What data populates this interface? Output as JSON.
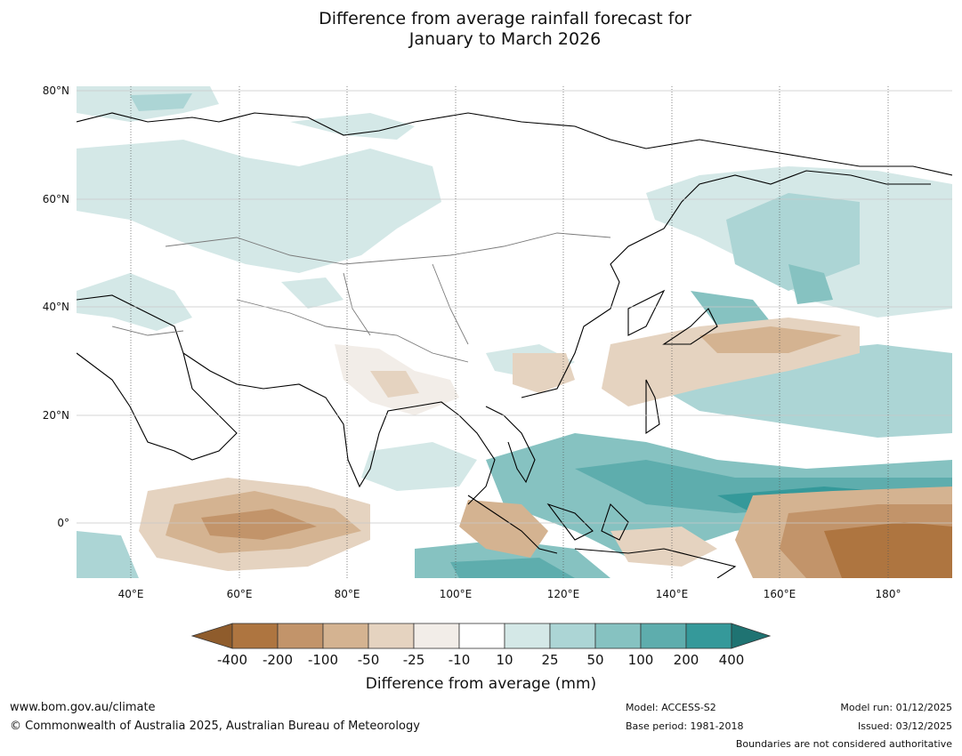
{
  "title_line1": "Difference from average rainfall forecast for",
  "title_line2": "January to March 2026",
  "lat_labels": [
    "80°N",
    "60°N",
    "40°N",
    "20°N",
    "0°"
  ],
  "lon_labels": [
    "40°E",
    "60°E",
    "80°E",
    "100°E",
    "120°E",
    "140°E",
    "160°E",
    "180°"
  ],
  "colorbar": {
    "ticks": [
      "-400",
      "-200",
      "-100",
      "-50",
      "-25",
      "-10",
      "10",
      "25",
      "50",
      "100",
      "200",
      "400"
    ],
    "colors": [
      "#8f5c2c",
      "#ae7540",
      "#c2946a",
      "#d4b391",
      "#e5d3c0",
      "#f2ede8",
      "#ffffff",
      "#d4e8e7",
      "#acd5d5",
      "#86c2c1",
      "#5eadad",
      "#35999a",
      "#1f7372"
    ],
    "label": "Difference from average (mm)"
  },
  "footer": {
    "website": "www.bom.gov.au/climate",
    "copyright": "© Commonwealth of Australia 2025, Australian Bureau of Meteorology",
    "model": "Model: ACCESS-S2",
    "base_period": "Base period: 1981-2018",
    "model_run": "Model run: 01/12/2025",
    "issued": "Issued: 03/12/2025",
    "boundaries": "Boundaries are not considered authoritative"
  }
}
